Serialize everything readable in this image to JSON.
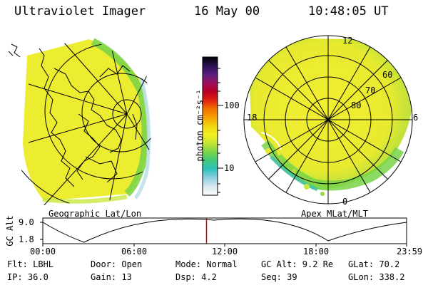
{
  "header": {
    "instrument": "Ultraviolet Imager",
    "date": "16 May 00",
    "time": "10:48:05 UT"
  },
  "left_panel": {
    "caption": "Geographic Lat/Lon"
  },
  "right_panel": {
    "caption": "Apex MLat/MLT",
    "lat_labels": [
      "60",
      "70",
      "80"
    ],
    "mlt_labels": [
      "12",
      "18",
      "6",
      "0"
    ]
  },
  "colorbar": {
    "unit_label": "photon cm⁻²s⁻¹",
    "tick_labels": [
      "100",
      "10"
    ],
    "colors": [
      "#ffffff",
      "#d8e6ee",
      "#8fd0e0",
      "#2ec0c0",
      "#40c878",
      "#78d44a",
      "#c4e432",
      "#f4f01e",
      "#f0d810",
      "#f8a000",
      "#f07000",
      "#e02010",
      "#b80020",
      "#9a1060",
      "#5a2080",
      "#2a1050",
      "#000000"
    ]
  },
  "altitude_plot": {
    "y_title": "GC Alt",
    "y_ticks": [
      "9.0",
      "1.8"
    ],
    "x_ticks": [
      "00:00",
      "06:00",
      "12:00",
      "18:00",
      "23:59"
    ],
    "current_time_marker_fraction": 0.45,
    "marker_color": "#cc0000"
  },
  "info": {
    "flt": "Flt: LBHL",
    "ip": "IP: 36.0",
    "door": "Door: Open",
    "gain": "Gain: 13",
    "mode": "Mode: Normal",
    "dsp": "Dsp:    4.2",
    "gcalt": "GC Alt: 9.2 Re",
    "seq": "Seq: 39",
    "glat": "GLat:  70.2",
    "glon": "GLon: 338.2"
  }
}
